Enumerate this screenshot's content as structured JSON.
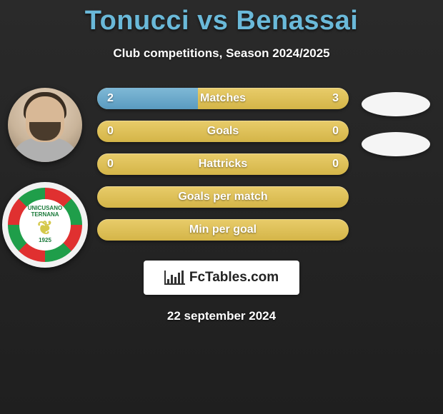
{
  "title": "Tonucci vs Benassai",
  "subtitle": "Club competitions, Season 2024/2025",
  "title_color": "#6ab9d9",
  "left_player": {
    "name": "Tonucci"
  },
  "club_badge": {
    "line1": "UNICUSANO",
    "line2": "TERNANA",
    "year": "1925"
  },
  "bars": [
    {
      "label": "Matches",
      "left": "2",
      "right": "3",
      "left_pct": 40,
      "show_left": true,
      "show_right": true
    },
    {
      "label": "Goals",
      "left": "0",
      "right": "0",
      "left_pct": 0,
      "show_left": true,
      "show_right": true
    },
    {
      "label": "Hattricks",
      "left": "0",
      "right": "0",
      "left_pct": 0,
      "show_left": true,
      "show_right": true
    },
    {
      "label": "Goals per match",
      "left": "",
      "right": "",
      "left_pct": 0,
      "show_left": false,
      "show_right": false
    },
    {
      "label": "Min per goal",
      "left": "",
      "right": "",
      "left_pct": 0,
      "show_left": false,
      "show_right": false
    }
  ],
  "bar_style": {
    "height": 30,
    "radius": 15,
    "base_gradient": [
      "#e8cc6a",
      "#d4b548"
    ],
    "fill_gradient": [
      "#7fb8d6",
      "#5a9bc0"
    ],
    "label_color": "#ffffff",
    "label_fontsize": 16
  },
  "right_placeholders": 2,
  "brand": {
    "name": "FcTables.com"
  },
  "date": "22 september 2024",
  "background_gradient": [
    "#2a2a2a",
    "#1f1f1f"
  ]
}
